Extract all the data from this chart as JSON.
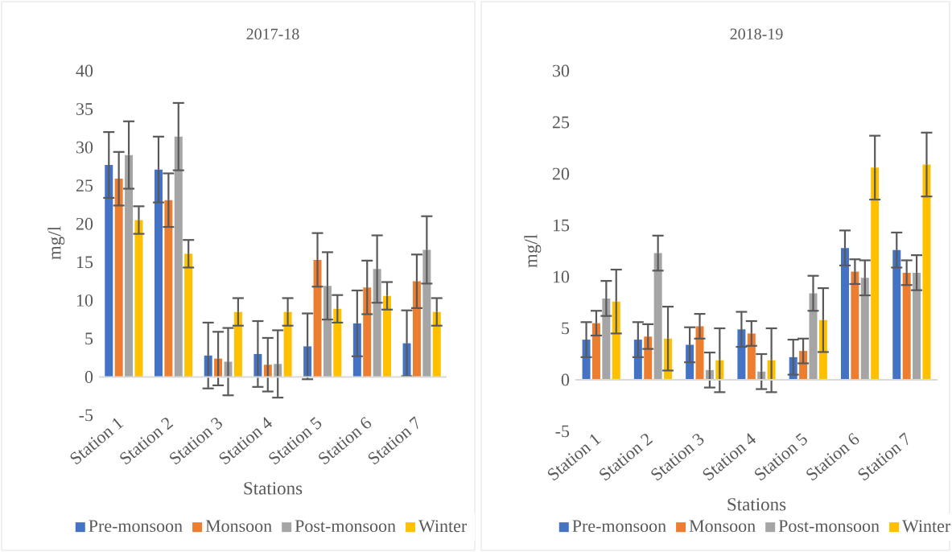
{
  "chart_data": [
    {
      "type": "bar",
      "title": "2017-18",
      "xlabel": "Stations",
      "ylabel": "mg/l",
      "categories": [
        "Station 1",
        "Station 2",
        "Station 3",
        "Station 4",
        "Station 5",
        "Station 6",
        "Station 7"
      ],
      "series": [
        {
          "name": "Pre-monsoon",
          "color": "#4472c4",
          "values": [
            27.7,
            27.1,
            2.8,
            3.0,
            4.0,
            7.0,
            4.4
          ],
          "errors": [
            4.3,
            4.3,
            4.3,
            4.3,
            4.3,
            4.3,
            4.3
          ]
        },
        {
          "name": "Monsoon",
          "color": "#ed7d31",
          "values": [
            25.9,
            23.1,
            2.4,
            1.6,
            15.3,
            11.7,
            12.5
          ],
          "errors": [
            3.5,
            3.5,
            3.5,
            3.5,
            3.5,
            3.5,
            3.5
          ]
        },
        {
          "name": "Post-monsoon",
          "color": "#a5a5a5",
          "values": [
            29.0,
            31.4,
            2.0,
            1.7,
            11.9,
            14.1,
            16.6
          ],
          "errors": [
            4.4,
            4.4,
            4.4,
            4.4,
            4.4,
            4.4,
            4.4
          ]
        },
        {
          "name": "Winter",
          "color": "#ffc000",
          "values": [
            20.5,
            16.1,
            8.5,
            8.5,
            8.9,
            10.6,
            8.5
          ],
          "errors": [
            1.8,
            1.8,
            1.8,
            1.8,
            1.8,
            1.8,
            1.8
          ]
        }
      ],
      "ylim": [
        -5,
        40
      ],
      "yticks": [
        -5,
        0,
        5,
        10,
        15,
        20,
        25,
        30,
        35,
        40
      ],
      "legend": "bottom"
    },
    {
      "type": "bar",
      "title": "2018-19",
      "xlabel": "Stations",
      "ylabel": "mg/l",
      "categories": [
        "Station 1",
        "Station 2",
        "Station 3",
        "Station 4",
        "Station 5",
        "Station 6",
        "Station 7"
      ],
      "series": [
        {
          "name": "Pre-monsoon",
          "color": "#4472c4",
          "values": [
            3.9,
            3.9,
            3.4,
            4.9,
            2.2,
            12.8,
            12.6
          ],
          "errors": [
            1.7,
            1.7,
            1.7,
            1.7,
            1.7,
            1.7,
            1.7
          ]
        },
        {
          "name": "Monsoon",
          "color": "#ed7d31",
          "values": [
            5.5,
            4.2,
            5.2,
            4.5,
            2.8,
            10.5,
            10.4
          ],
          "errors": [
            1.2,
            1.2,
            1.2,
            1.2,
            1.2,
            1.2,
            1.2
          ]
        },
        {
          "name": "Post-monsoon",
          "color": "#a5a5a5",
          "values": [
            7.9,
            12.3,
            0.95,
            0.8,
            8.4,
            9.9,
            10.4
          ],
          "errors": [
            1.7,
            1.7,
            1.7,
            1.7,
            1.7,
            1.7,
            1.7
          ]
        },
        {
          "name": "Winter",
          "color": "#ffc000",
          "values": [
            7.6,
            4.0,
            1.9,
            1.9,
            5.8,
            20.6,
            20.9
          ],
          "errors": [
            3.1,
            3.1,
            3.1,
            3.1,
            3.1,
            3.1,
            3.1
          ]
        }
      ],
      "ylim": [
        -5,
        30
      ],
      "yticks": [
        -5,
        0,
        5,
        10,
        15,
        20,
        25,
        30
      ],
      "legend": "bottom"
    }
  ]
}
